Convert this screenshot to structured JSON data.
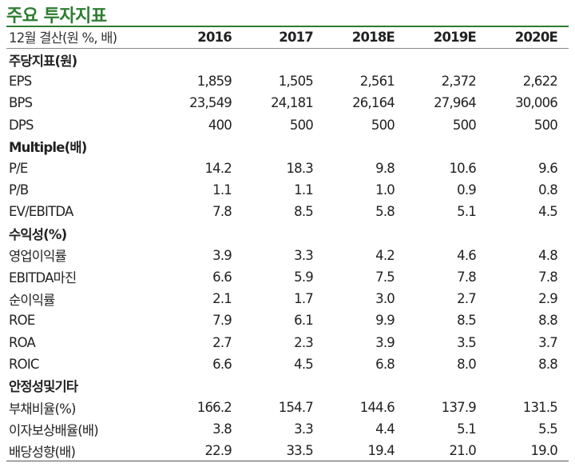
{
  "title": "주요 투자지표",
  "header": {
    "label": "12월 결산(원 %, 배)",
    "years": [
      "2016",
      "2017",
      "2018E",
      "2019E",
      "2020E"
    ]
  },
  "rows": [
    {
      "type": "section",
      "label": "주당지표(원)",
      "values": [
        "",
        "",
        "",
        "",
        ""
      ]
    },
    {
      "type": "data",
      "label": "EPS",
      "values": [
        "1,859",
        "1,505",
        "2,561",
        "2,372",
        "2,622"
      ]
    },
    {
      "type": "data",
      "label": "BPS",
      "values": [
        "23,549",
        "24,181",
        "26,164",
        "27,964",
        "30,006"
      ]
    },
    {
      "type": "data",
      "label": "DPS",
      "values": [
        "400",
        "500",
        "500",
        "500",
        "500"
      ]
    },
    {
      "type": "section",
      "label": "Multiple(배)",
      "values": [
        "",
        "",
        "",
        "",
        ""
      ]
    },
    {
      "type": "data",
      "label": "P/E",
      "values": [
        "14.2",
        "18.3",
        "9.8",
        "10.6",
        "9.6"
      ]
    },
    {
      "type": "data",
      "label": "P/B",
      "values": [
        "1.1",
        "1.1",
        "1.0",
        "0.9",
        "0.8"
      ]
    },
    {
      "type": "data",
      "label": "EV/EBITDA",
      "values": [
        "7.8",
        "8.5",
        "5.8",
        "5.1",
        "4.5"
      ]
    },
    {
      "type": "section",
      "label": "수익성(%)",
      "values": [
        "",
        "",
        "",
        "",
        ""
      ]
    },
    {
      "type": "data",
      "label": "영업이익률",
      "values": [
        "3.9",
        "3.3",
        "4.2",
        "4.6",
        "4.8"
      ]
    },
    {
      "type": "data",
      "label": "EBITDA마진",
      "values": [
        "6.6",
        "5.9",
        "7.5",
        "7.8",
        "7.8"
      ]
    },
    {
      "type": "data",
      "label": "순이익률",
      "values": [
        "2.1",
        "1.7",
        "3.0",
        "2.7",
        "2.9"
      ]
    },
    {
      "type": "data",
      "label": "ROE",
      "values": [
        "7.9",
        "6.1",
        "9.9",
        "8.5",
        "8.8"
      ]
    },
    {
      "type": "data",
      "label": "ROA",
      "values": [
        "2.7",
        "2.3",
        "3.9",
        "3.5",
        "3.7"
      ]
    },
    {
      "type": "data",
      "label": "ROIC",
      "values": [
        "6.6",
        "4.5",
        "6.8",
        "8.0",
        "8.8"
      ]
    },
    {
      "type": "section",
      "label": "안정성및기타",
      "values": [
        "",
        "",
        "",
        "",
        ""
      ]
    },
    {
      "type": "data",
      "label": "부채비율(%)",
      "values": [
        "166.2",
        "154.7",
        "144.6",
        "137.9",
        "131.5"
      ]
    },
    {
      "type": "data",
      "label": "이자보상배율(배)",
      "values": [
        "3.8",
        "3.3",
        "4.4",
        "5.1",
        "5.5"
      ]
    },
    {
      "type": "data",
      "label": "배당성향(배)",
      "values": [
        "22.9",
        "33.5",
        "19.4",
        "21.0",
        "19.0"
      ]
    }
  ]
}
